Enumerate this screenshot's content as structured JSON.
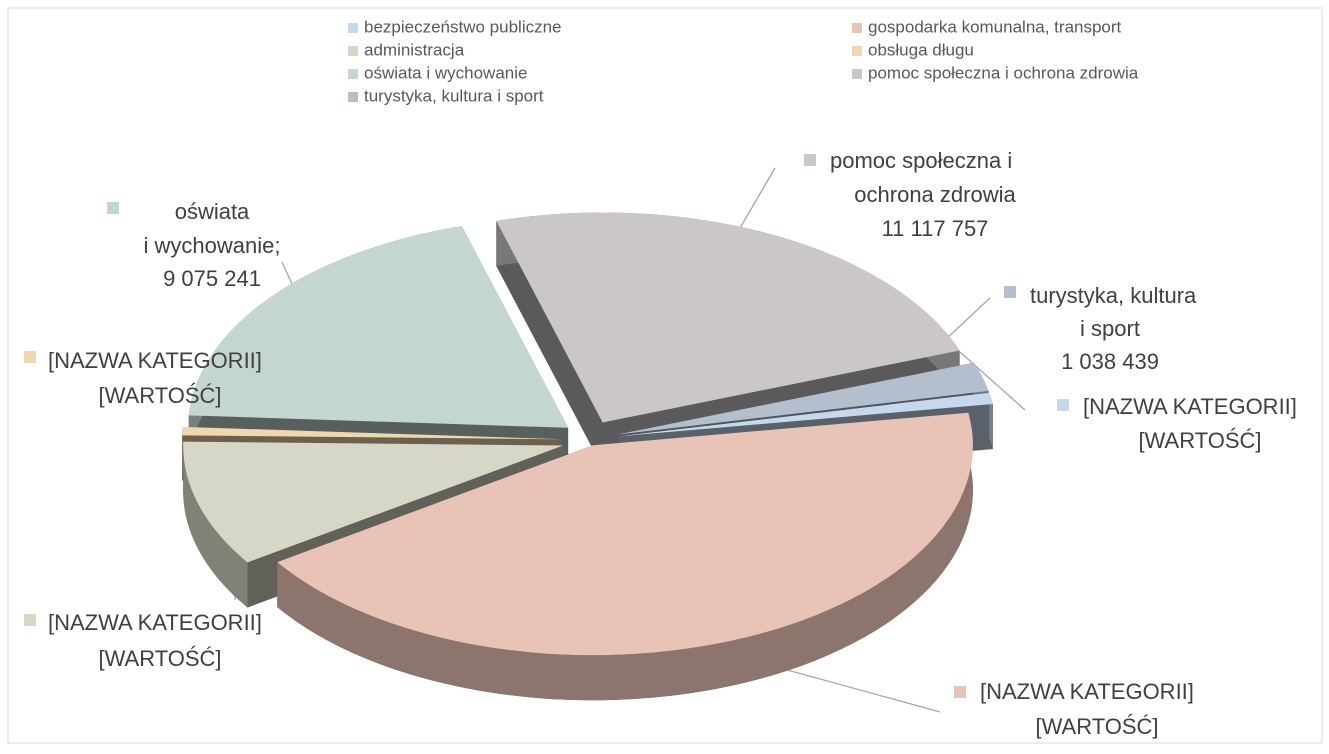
{
  "chart_data": {
    "type": "pie",
    "categories": [
      "bezpieczeństwo publiczne",
      "gospodarka komunalna, transport",
      "administracja",
      "obsługa długu",
      "oświata i wychowanie",
      "pomoc społeczna i ochrona zdrowia",
      "turystyka, kultura i sport"
    ],
    "values": [
      400000,
      20000000,
      4500000,
      300000,
      9075241,
      11117757,
      1038439
    ],
    "value_labels": [
      "[WARTOŚĆ]",
      "[WARTOŚĆ]",
      "[WARTOŚĆ]",
      "[WARTOŚĆ]",
      "9 075 241",
      "11 117 757",
      "1 038 439"
    ],
    "label_names": [
      [
        "[NAZWA KATEGORII]"
      ],
      [
        "[NAZWA KATEGORII]"
      ],
      [
        "[NAZWA KATEGORII]"
      ],
      [
        "[NAZWA KATEGORII]"
      ],
      [
        "oświata",
        "i wychowanie;"
      ],
      [
        "pomoc społeczna i",
        "ochrona zdrowia"
      ],
      [
        "turystyka, kultura",
        "i sport"
      ]
    ],
    "colors": [
      "#c6d9ec",
      "#e9c3b5",
      "#d7d7c7",
      "#efd8b0",
      "#c4d6d0",
      "#cbc7c9",
      "#b4bfce"
    ],
    "legend": "top"
  }
}
